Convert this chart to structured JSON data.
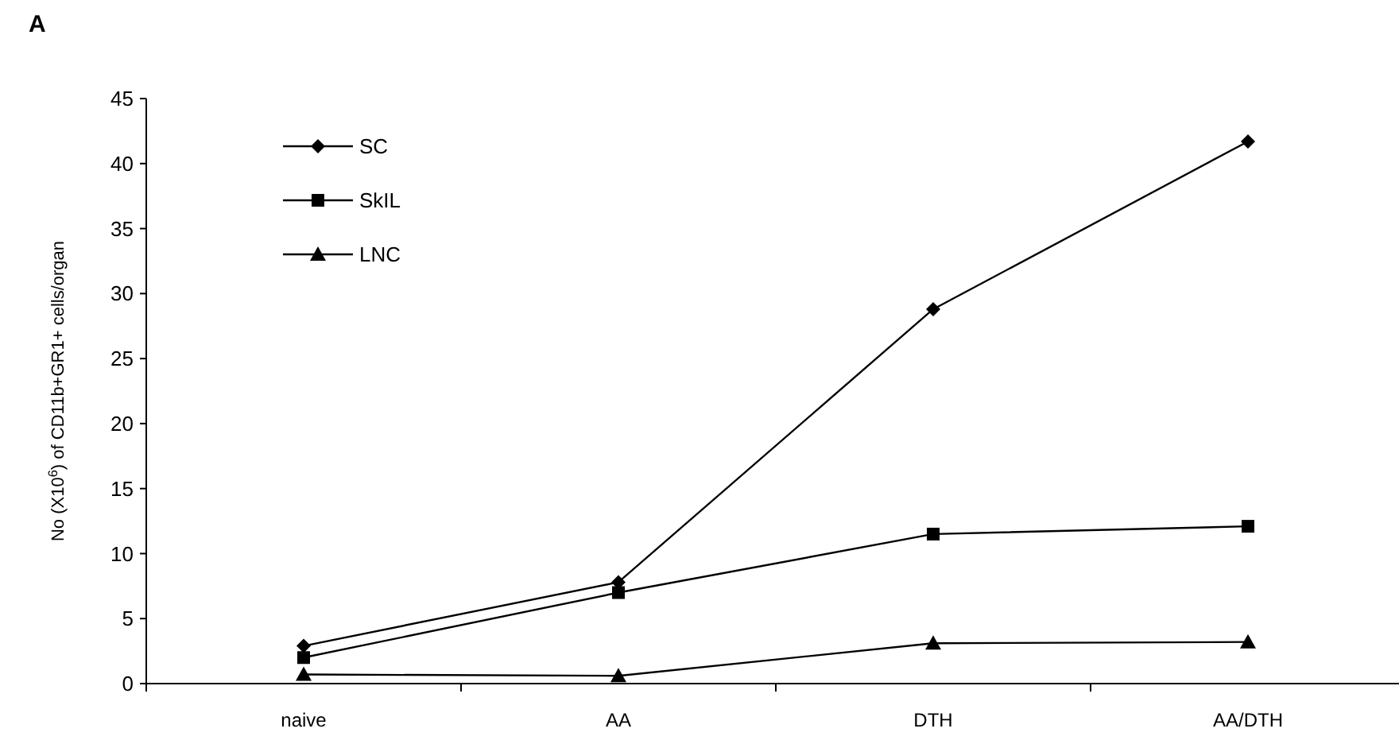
{
  "chart_data": {
    "type": "line",
    "title": "A",
    "ylabel": "No (X10$^{6}$) of CD11b+GR1+ cells/organ",
    "categories": [
      "naive",
      "AA",
      "DTH",
      "AA/DTH"
    ],
    "series": [
      {
        "name": "SC",
        "color": "#000000",
        "marker": "diamond",
        "values": [
          2.9,
          7.8,
          28.8,
          41.7
        ]
      },
      {
        "name": "SkIL",
        "color": "#000000",
        "marker": "square",
        "values": [
          2.0,
          7.0,
          11.5,
          12.1
        ]
      },
      {
        "name": "LNC",
        "color": "#000000",
        "marker": "triangle",
        "values": [
          0.7,
          0.6,
          3.1,
          3.2
        ]
      }
    ],
    "ylim": [
      0,
      45
    ],
    "yticks": [
      0,
      5,
      10,
      15,
      20,
      25,
      30,
      35,
      40,
      45
    ],
    "grid": false,
    "legend": "top left",
    "line_style": "solid"
  }
}
